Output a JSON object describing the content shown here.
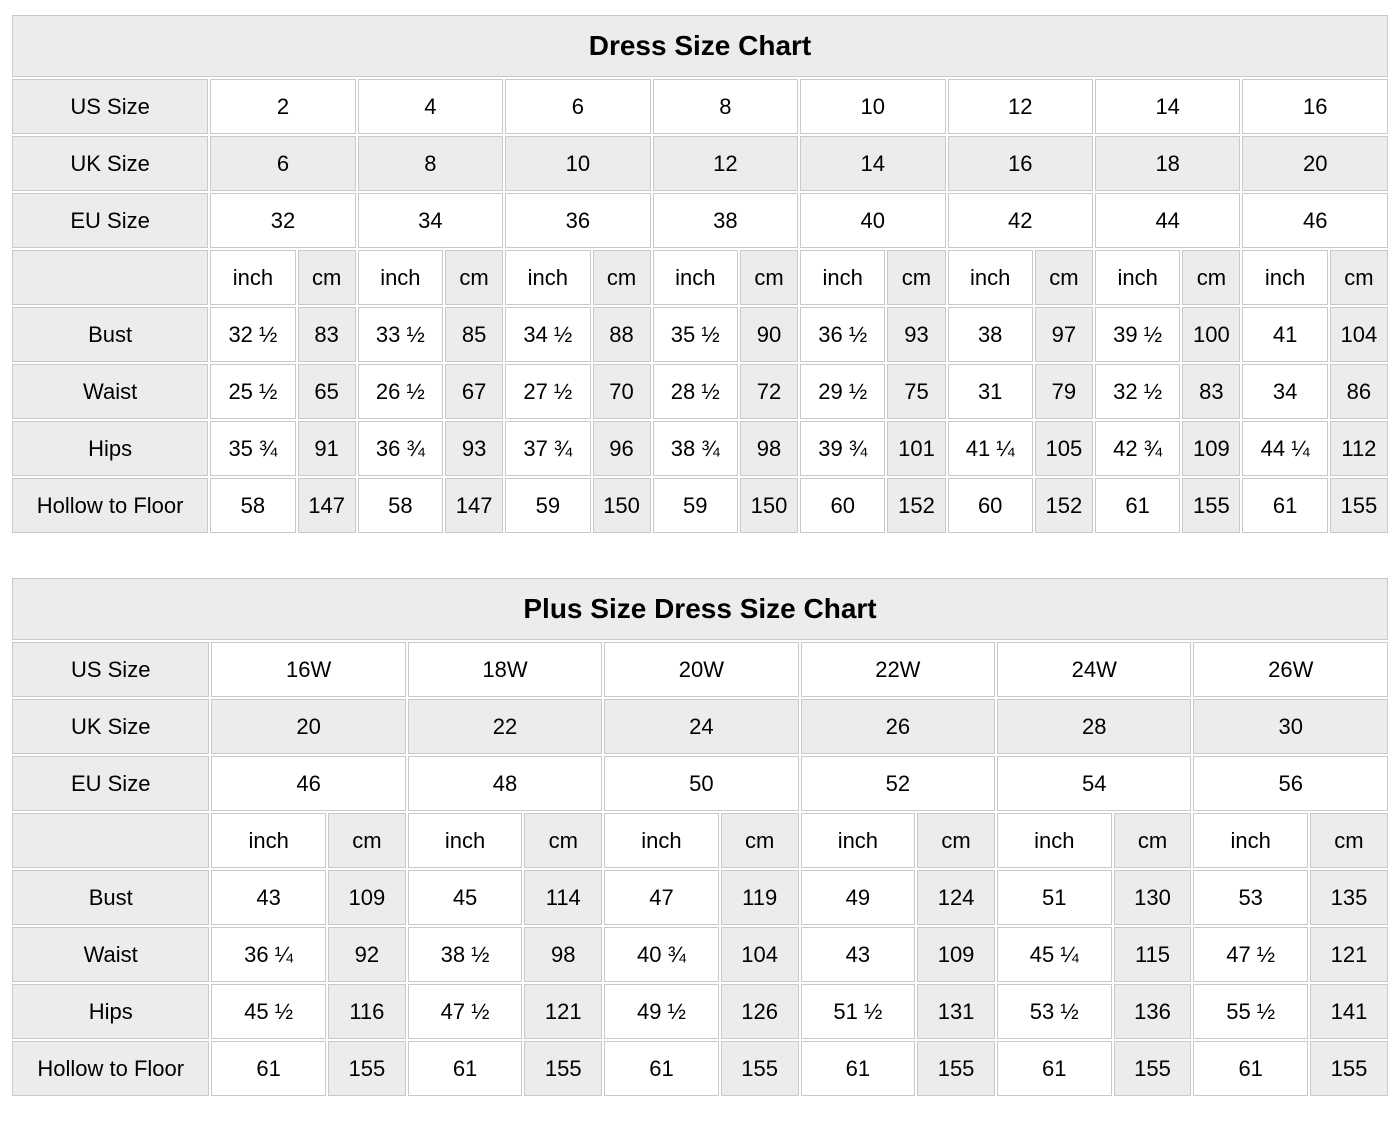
{
  "colors": {
    "shaded_bg": "#ececec",
    "cell_bg": "#ffffff",
    "border": "#c9c9c9",
    "text": "#000000"
  },
  "tables": [
    {
      "title": "Dress Size Chart",
      "unit_labels": {
        "inch": "inch",
        "cm": "cm"
      },
      "size_rows": [
        {
          "label": "US Size",
          "shaded": false,
          "values": [
            "2",
            "4",
            "6",
            "8",
            "10",
            "12",
            "14",
            "16"
          ]
        },
        {
          "label": "UK Size",
          "shaded": true,
          "values": [
            "6",
            "8",
            "10",
            "12",
            "14",
            "16",
            "18",
            "20"
          ]
        },
        {
          "label": "EU Size",
          "shaded": false,
          "values": [
            "32",
            "34",
            "36",
            "38",
            "40",
            "42",
            "44",
            "46"
          ]
        }
      ],
      "measurement_rows": [
        {
          "label": "Bust",
          "inch": [
            "32 ½",
            "33 ½",
            "34 ½",
            "35 ½",
            "36 ½",
            "38",
            "39 ½",
            "41"
          ],
          "cm": [
            "83",
            "85",
            "88",
            "90",
            "93",
            "97",
            "100",
            "104"
          ]
        },
        {
          "label": "Waist",
          "inch": [
            "25 ½",
            "26 ½",
            "27 ½",
            "28 ½",
            "29 ½",
            "31",
            "32 ½",
            "34"
          ],
          "cm": [
            "65",
            "67",
            "70",
            "72",
            "75",
            "79",
            "83",
            "86"
          ]
        },
        {
          "label": "Hips",
          "inch": [
            "35 ¾",
            "36 ¾",
            "37 ¾",
            "38 ¾",
            "39 ¾",
            "41 ¼",
            "42 ¾",
            "44 ¼"
          ],
          "cm": [
            "91",
            "93",
            "96",
            "98",
            "101",
            "105",
            "109",
            "112"
          ]
        },
        {
          "label": "Hollow to Floor",
          "inch": [
            "58",
            "58",
            "59",
            "59",
            "60",
            "60",
            "61",
            "61"
          ],
          "cm": [
            "147",
            "147",
            "150",
            "150",
            "152",
            "152",
            "155",
            "155"
          ]
        }
      ]
    },
    {
      "title": "Plus Size Dress Size Chart",
      "unit_labels": {
        "inch": "inch",
        "cm": "cm"
      },
      "size_rows": [
        {
          "label": "US Size",
          "shaded": false,
          "values": [
            "16W",
            "18W",
            "20W",
            "22W",
            "24W",
            "26W"
          ]
        },
        {
          "label": "UK Size",
          "shaded": true,
          "values": [
            "20",
            "22",
            "24",
            "26",
            "28",
            "30"
          ]
        },
        {
          "label": "EU Size",
          "shaded": false,
          "values": [
            "46",
            "48",
            "50",
            "52",
            "54",
            "56"
          ]
        }
      ],
      "measurement_rows": [
        {
          "label": "Bust",
          "inch": [
            "43",
            "45",
            "47",
            "49",
            "51",
            "53"
          ],
          "cm": [
            "109",
            "114",
            "119",
            "124",
            "130",
            "135"
          ]
        },
        {
          "label": "Waist",
          "inch": [
            "36 ¼",
            "38 ½",
            "40 ¾",
            "43",
            "45 ¼",
            "47 ½"
          ],
          "cm": [
            "92",
            "98",
            "104",
            "109",
            "115",
            "121"
          ]
        },
        {
          "label": "Hips",
          "inch": [
            "45 ½",
            "47 ½",
            "49 ½",
            "51 ½",
            "53 ½",
            "55 ½"
          ],
          "cm": [
            "116",
            "121",
            "126",
            "131",
            "136",
            "141"
          ]
        },
        {
          "label": "Hollow to Floor",
          "inch": [
            "61",
            "61",
            "61",
            "61",
            "61",
            "61"
          ],
          "cm": [
            "155",
            "155",
            "155",
            "155",
            "155",
            "155"
          ]
        }
      ]
    }
  ]
}
